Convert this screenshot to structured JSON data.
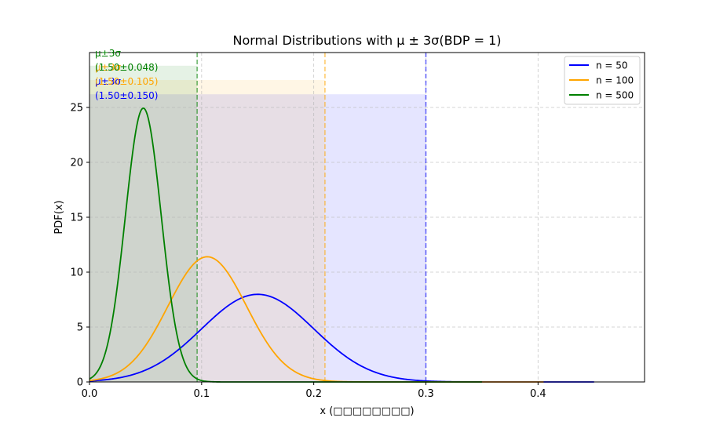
{
  "chart_data": {
    "type": "line",
    "title": "Normal Distributions with μ ± 3σ(BDP = 1)",
    "xlabel": "x (□□□□□□□□)",
    "ylabel": "PDF(x)",
    "xlim": [
      0.0,
      0.495
    ],
    "ylim": [
      0,
      30
    ],
    "x_ticks": [
      0.0,
      0.1,
      0.2,
      0.3,
      0.4
    ],
    "x_tick_labels": [
      "0.0",
      "0.1",
      "0.2",
      "0.3",
      "0.4"
    ],
    "y_ticks": [
      0,
      5,
      10,
      15,
      20,
      25
    ],
    "y_tick_labels": [
      "0",
      "5",
      "10",
      "15",
      "20",
      "25"
    ],
    "grid": true,
    "legend_position": "top-right",
    "series": [
      {
        "name": "n = 50",
        "color": "#0000ff",
        "mu": 0.15,
        "sigma": 0.05,
        "x_range": [
          0.0,
          0.45
        ],
        "peak_y": 7.98,
        "three_sigma_line_x": 0.3,
        "band": {
          "x_range": [
            0.0,
            0.3
          ],
          "height": 26.2
        },
        "annotation": [
          "μ±3σ",
          "(1.50±0.150)"
        ]
      },
      {
        "name": "n = 100",
        "color": "#ffa500",
        "mu": 0.105,
        "sigma": 0.035,
        "x_range": [
          0.0,
          0.405
        ],
        "peak_y": 11.4,
        "three_sigma_line_x": 0.21,
        "band": {
          "x_range": [
            0.0,
            0.21
          ],
          "height": 27.5
        },
        "annotation": [
          "μ±3σ",
          "(1.50±0.105)"
        ]
      },
      {
        "name": "n = 500",
        "color": "#008000",
        "mu": 0.048,
        "sigma": 0.016,
        "x_range": [
          0.0,
          0.35
        ],
        "peak_y": 24.93,
        "three_sigma_line_x": 0.096,
        "band": {
          "x_range": [
            0.0,
            0.096
          ],
          "height": 28.8
        },
        "annotation": [
          "μ±3σ",
          "(1.50±0.048)"
        ]
      }
    ]
  }
}
